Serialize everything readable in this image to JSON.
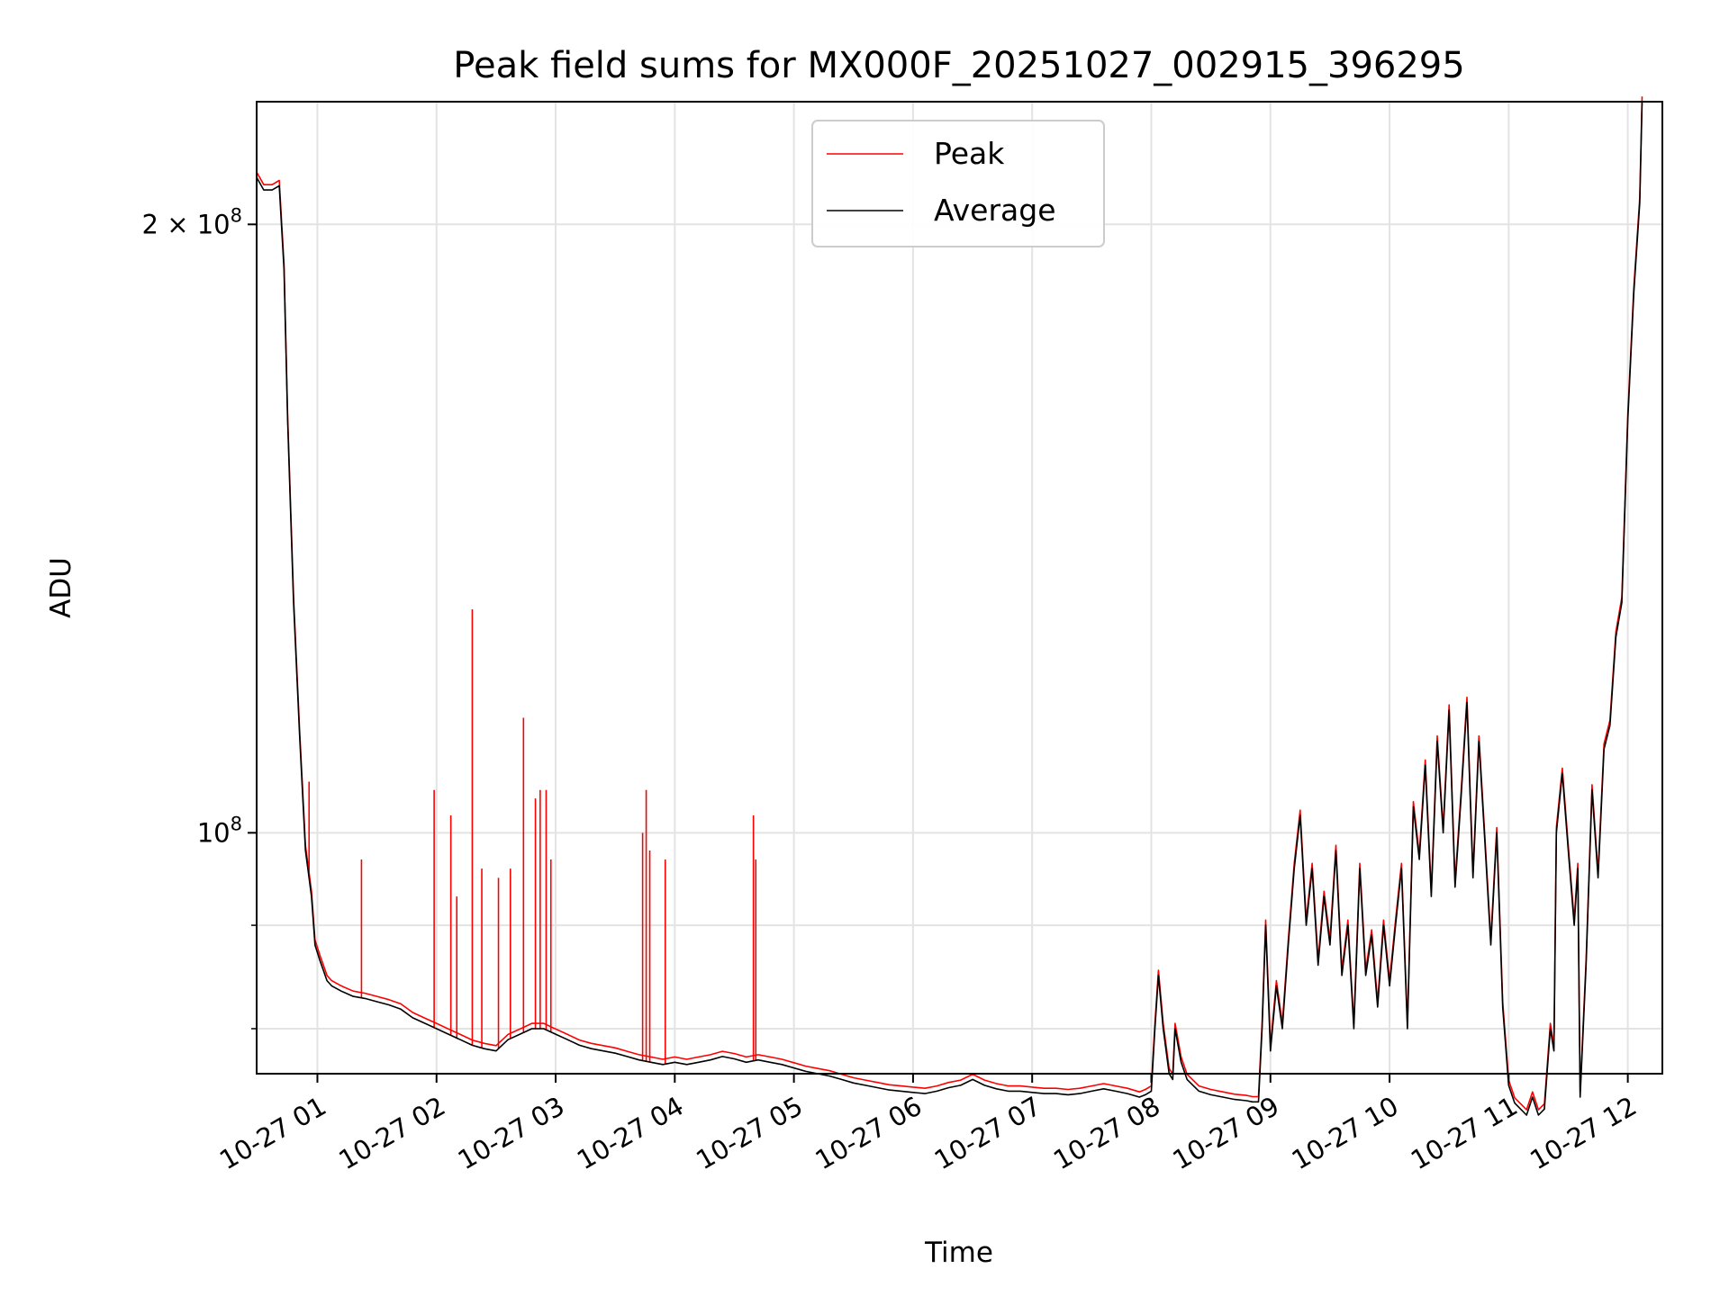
{
  "chart_data": {
    "type": "line",
    "title": "Peak field sums for MX000F_20251027_002915_396295",
    "xlabel": "Time",
    "ylabel": "ADU",
    "x_unit": "hours since 10-27 00:00",
    "xlim": [
      0.49,
      12.29
    ],
    "ylim": [
      76000000.0,
      230000000.0
    ],
    "yscale": "log",
    "grid": true,
    "legend_position": "upper center",
    "x_ticks": [
      {
        "value": 1,
        "label": "10-27 01"
      },
      {
        "value": 2,
        "label": "10-27 02"
      },
      {
        "value": 3,
        "label": "10-27 03"
      },
      {
        "value": 4,
        "label": "10-27 04"
      },
      {
        "value": 5,
        "label": "10-27 05"
      },
      {
        "value": 6,
        "label": "10-27 06"
      },
      {
        "value": 7,
        "label": "10-27 07"
      },
      {
        "value": 8,
        "label": "10-27 08"
      },
      {
        "value": 9,
        "label": "10-27 09"
      },
      {
        "value": 10,
        "label": "10-27 10"
      },
      {
        "value": 11,
        "label": "10-27 11"
      },
      {
        "value": 12,
        "label": "10-27 12"
      }
    ],
    "y_major_ticks": [
      {
        "value": 100000000,
        "base": "10",
        "exp": "8"
      },
      {
        "value": 200000000,
        "base": "2 × 10",
        "exp": "8"
      }
    ],
    "y_minor_ticks": [
      80000000,
      90000000
    ],
    "series": [
      {
        "name": "Average",
        "color": "#000000",
        "x": [
          0.49,
          0.55,
          0.62,
          0.68,
          0.72,
          0.75,
          0.8,
          0.85,
          0.9,
          0.93,
          0.95,
          0.98,
          1.02,
          1.05,
          1.08,
          1.12,
          1.2,
          1.3,
          1.4,
          1.5,
          1.6,
          1.7,
          1.8,
          1.9,
          2.0,
          2.1,
          2.2,
          2.3,
          2.4,
          2.5,
          2.6,
          2.7,
          2.8,
          2.9,
          3.0,
          3.1,
          3.2,
          3.3,
          3.4,
          3.5,
          3.6,
          3.7,
          3.8,
          3.9,
          4.0,
          4.1,
          4.2,
          4.3,
          4.4,
          4.5,
          4.6,
          4.7,
          4.8,
          4.9,
          5.0,
          5.1,
          5.2,
          5.3,
          5.4,
          5.5,
          5.6,
          5.7,
          5.8,
          5.9,
          6.0,
          6.1,
          6.2,
          6.3,
          6.4,
          6.5,
          6.6,
          6.7,
          6.8,
          6.9,
          7.0,
          7.1,
          7.2,
          7.3,
          7.4,
          7.5,
          7.6,
          7.7,
          7.8,
          7.9,
          7.95,
          8.0,
          8.03,
          8.06,
          8.1,
          8.15,
          8.18,
          8.2,
          8.25,
          8.3,
          8.4,
          8.5,
          8.6,
          8.7,
          8.8,
          8.85,
          8.9,
          8.93,
          8.96,
          9.0,
          9.05,
          9.1,
          9.15,
          9.2,
          9.25,
          9.3,
          9.35,
          9.4,
          9.45,
          9.5,
          9.55,
          9.6,
          9.65,
          9.7,
          9.75,
          9.8,
          9.85,
          9.9,
          9.95,
          10.0,
          10.05,
          10.1,
          10.15,
          10.2,
          10.25,
          10.3,
          10.35,
          10.4,
          10.45,
          10.5,
          10.55,
          10.6,
          10.65,
          10.7,
          10.75,
          10.8,
          10.85,
          10.9,
          10.95,
          11.0,
          11.05,
          11.1,
          11.15,
          11.2,
          11.25,
          11.3,
          11.35,
          11.38,
          11.4,
          11.45,
          11.5,
          11.55,
          11.58,
          11.6,
          11.65,
          11.7,
          11.75,
          11.8,
          11.85,
          11.9,
          11.95,
          12.0,
          12.05,
          12.1,
          12.12
        ],
        "values": [
          211000000,
          208000000,
          208000000,
          209000000,
          190000000,
          160000000,
          130000000,
          112000000,
          98000000,
          95000000,
          93000000,
          88000000,
          86500000,
          85500000,
          84500000,
          84000000,
          83500000,
          83000000,
          82800000,
          82500000,
          82200000,
          81800000,
          81000000,
          80500000,
          80000000,
          79500000,
          79000000,
          78500000,
          78200000,
          78000000,
          79000000,
          79500000,
          80000000,
          80000000,
          79500000,
          79000000,
          78500000,
          78200000,
          78000000,
          77800000,
          77500000,
          77200000,
          77000000,
          76800000,
          77000000,
          76800000,
          77000000,
          77200000,
          77500000,
          77300000,
          77000000,
          77200000,
          77000000,
          76800000,
          76500000,
          76200000,
          76000000,
          75800000,
          75500000,
          75200000,
          75000000,
          74800000,
          74600000,
          74500000,
          74400000,
          74300000,
          74500000,
          74800000,
          75000000,
          75500000,
          75000000,
          74700000,
          74500000,
          74500000,
          74400000,
          74300000,
          74300000,
          74200000,
          74300000,
          74500000,
          74700000,
          74500000,
          74300000,
          74000000,
          74200000,
          74500000,
          80000000,
          85000000,
          80000000,
          76000000,
          75500000,
          80000000,
          77000000,
          75500000,
          74500000,
          74200000,
          74000000,
          73800000,
          73700000,
          73600000,
          73600000,
          80000000,
          90000000,
          78000000,
          84000000,
          80000000,
          88000000,
          96000000,
          102000000,
          90000000,
          96000000,
          86000000,
          93000000,
          88000000,
          98000000,
          85000000,
          90000000,
          80000000,
          96000000,
          85000000,
          89000000,
          82000000,
          90000000,
          84000000,
          90000000,
          96000000,
          80000000,
          103000000,
          97000000,
          108000000,
          93000000,
          111000000,
          100000000,
          115000000,
          94000000,
          104000000,
          116000000,
          95000000,
          111000000,
          99000000,
          88000000,
          100000000,
          82000000,
          75000000,
          73500000,
          73000000,
          72500000,
          74000000,
          72500000,
          73000000,
          80000000,
          78000000,
          100000000,
          107000000,
          98000000,
          90000000,
          96000000,
          74000000,
          86000000,
          105000000,
          95000000,
          110000000,
          113000000,
          125000000,
          130000000,
          160000000,
          185000000,
          205000000,
          230000000
        ]
      },
      {
        "name": "Peak",
        "color": "#ff0000",
        "spikes": [
          {
            "x": 0.93,
            "value": 106000000
          },
          {
            "x": 1.37,
            "value": 97000000
          },
          {
            "x": 1.98,
            "value": 105000000
          },
          {
            "x": 2.12,
            "value": 102000000
          },
          {
            "x": 2.17,
            "value": 93000000
          },
          {
            "x": 2.3,
            "value": 129000000
          },
          {
            "x": 2.38,
            "value": 96000000
          },
          {
            "x": 2.52,
            "value": 95000000
          },
          {
            "x": 2.62,
            "value": 96000000
          },
          {
            "x": 2.73,
            "value": 114000000
          },
          {
            "x": 2.83,
            "value": 104000000
          },
          {
            "x": 2.87,
            "value": 105000000
          },
          {
            "x": 2.92,
            "value": 105000000
          },
          {
            "x": 2.96,
            "value": 97000000
          },
          {
            "x": 3.73,
            "value": 100000000
          },
          {
            "x": 3.76,
            "value": 105000000
          },
          {
            "x": 3.79,
            "value": 98000000
          },
          {
            "x": 3.92,
            "value": 97000000
          },
          {
            "x": 4.66,
            "value": 102000000
          },
          {
            "x": 4.68,
            "value": 97000000
          }
        ]
      }
    ]
  }
}
